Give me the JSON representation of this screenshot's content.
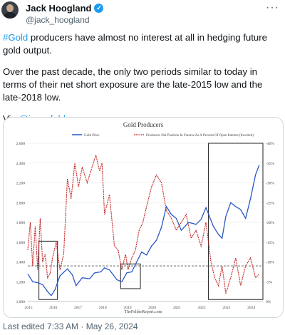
{
  "author": {
    "name": "Jack Hoogland",
    "handle": "@jack_hoogland",
    "verified_icon": "check-icon",
    "more_label": "···"
  },
  "tweet": {
    "hashtag": "#Gold",
    "line1_rest": " producers have almost no interest at all in hedging future gold output.",
    "paragraph2": "Over the past decade, the only two periods similar to today in terms of their net short exposure are the late-2015 low and the late-2018 low.",
    "via_prefix": "Via ",
    "via_mention": "@jessefelder"
  },
  "footer": {
    "edited": "Last edited 7:33 AM · May 26, 2024"
  },
  "colors": {
    "gold_line": "#2a56c6",
    "producers_line": "#c01818",
    "link": "#1d9bf0"
  },
  "chart_data": {
    "type": "line",
    "title": "Gold Producers",
    "source": "TheFelderReport.com",
    "x_tick_labels": [
      "2015",
      "2016",
      "2017",
      "2018",
      "2019",
      "2020",
      "2021",
      "2022",
      "2023",
      "2024"
    ],
    "xlim": [
      2015,
      2024.5
    ],
    "left_ylim": [
      1000,
      2600
    ],
    "left_tick_labels": [
      "1,000",
      "1,200",
      "1,400",
      "1,600",
      "1,800",
      "2,000",
      "2,200",
      "2,400",
      "2,600"
    ],
    "right_ylim": [
      0,
      -40
    ],
    "right_tick_labels": [
      "0%",
      "-5%",
      "-10%",
      "-15%",
      "-20%",
      "-25%",
      "-30%",
      "-35%",
      "-40%"
    ],
    "reference_line_value": 1360,
    "series": [
      {
        "name": "Gold Price",
        "axis": "left",
        "x": [
          2015.0,
          2015.2,
          2015.4,
          2015.6,
          2015.8,
          2015.95,
          2016.1,
          2016.3,
          2016.6,
          2016.8,
          2016.95,
          2017.2,
          2017.5,
          2017.7,
          2017.95,
          2018.1,
          2018.3,
          2018.6,
          2018.8,
          2019.0,
          2019.2,
          2019.4,
          2019.6,
          2019.8,
          2020.0,
          2020.2,
          2020.4,
          2020.6,
          2020.8,
          2021.0,
          2021.2,
          2021.5,
          2021.8,
          2022.0,
          2022.2,
          2022.5,
          2022.7,
          2022.85,
          2023.0,
          2023.2,
          2023.4,
          2023.6,
          2023.8,
          2024.0,
          2024.2,
          2024.35
        ],
        "values": [
          1280,
          1200,
          1190,
          1170,
          1100,
          1060,
          1120,
          1260,
          1330,
          1270,
          1160,
          1240,
          1230,
          1290,
          1300,
          1340,
          1320,
          1220,
          1200,
          1290,
          1300,
          1400,
          1500,
          1470,
          1560,
          1620,
          1750,
          1960,
          1880,
          1840,
          1720,
          1800,
          1780,
          1830,
          1950,
          1760,
          1680,
          1640,
          1860,
          2000,
          1960,
          1930,
          1840,
          2040,
          2280,
          2380
        ]
      },
      {
        "name": "Producers Net Position In Futures As A Percent Of Open Interest (Inverted)",
        "axis": "right",
        "x": [
          2015.0,
          2015.1,
          2015.2,
          2015.3,
          2015.4,
          2015.5,
          2015.6,
          2015.7,
          2015.8,
          2015.9,
          2016.0,
          2016.15,
          2016.3,
          2016.45,
          2016.6,
          2016.75,
          2016.9,
          2017.05,
          2017.2,
          2017.4,
          2017.6,
          2017.75,
          2017.9,
          2018.0,
          2018.1,
          2018.3,
          2018.5,
          2018.65,
          2018.8,
          2018.95,
          2019.05,
          2019.2,
          2019.35,
          2019.5,
          2019.65,
          2019.8,
          2020.0,
          2020.2,
          2020.4,
          2020.6,
          2020.8,
          2021.0,
          2021.2,
          2021.4,
          2021.6,
          2021.8,
          2022.0,
          2022.2,
          2022.4,
          2022.55,
          2022.7,
          2022.85,
          2023.0,
          2023.2,
          2023.4,
          2023.6,
          2023.8,
          2024.0,
          2024.2,
          2024.35
        ],
        "values": [
          -13,
          -20,
          -9,
          -19,
          -8,
          -21,
          -10,
          -12,
          -6,
          -7,
          -11,
          -15,
          -8,
          -12,
          -31,
          -26,
          -35,
          -29,
          -34,
          -30,
          -34,
          -37,
          -33,
          -35,
          -22,
          -27,
          -14,
          -13,
          -8,
          -12,
          -8,
          -11,
          -13,
          -18,
          -20,
          -24,
          -29,
          -32,
          -30,
          -23,
          -21,
          -18,
          -20,
          -22,
          -16,
          -18,
          -14,
          -20,
          -10,
          -6,
          -4,
          -9,
          -2,
          -6,
          -11,
          -4,
          -9,
          -11,
          -6,
          -7
        ]
      }
    ],
    "highlight_boxes_years": [
      [
        2015.45,
        2016.2
      ],
      [
        2018.75,
        2019.55
      ],
      [
        2022.3,
        2024.5
      ]
    ]
  }
}
